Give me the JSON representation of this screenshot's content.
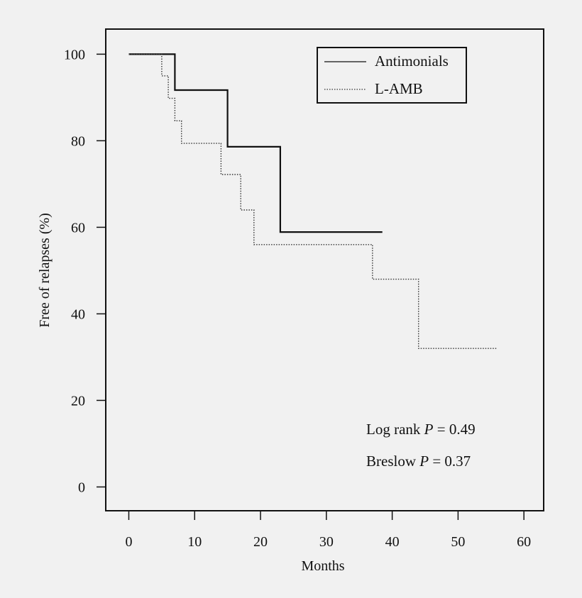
{
  "chart_data": {
    "type": "line",
    "subtype": "kaplan-meier-step",
    "title": "",
    "xlabel": "Months",
    "ylabel": "Free of relapses (%)",
    "xlim": [
      -3.5,
      63
    ],
    "ylim": [
      -5.5,
      105.8
    ],
    "xticks": [
      0,
      10,
      20,
      30,
      40,
      50,
      60
    ],
    "yticks": [
      0,
      20,
      40,
      60,
      80,
      100
    ],
    "legend_position": "top-right",
    "series": [
      {
        "name": "Antimonials",
        "style": "solid",
        "color": "#111111",
        "points": [
          [
            0,
            100
          ],
          [
            7,
            100
          ],
          [
            7,
            91.7
          ],
          [
            15,
            91.7
          ],
          [
            15,
            78.6
          ],
          [
            23,
            78.6
          ],
          [
            23,
            58.9
          ],
          [
            38.5,
            58.9
          ]
        ]
      },
      {
        "name": "L-AMB",
        "style": "dotted",
        "color": "#333333",
        "points": [
          [
            0,
            100
          ],
          [
            5,
            100
          ],
          [
            5,
            95
          ],
          [
            6,
            95
          ],
          [
            6,
            89.8
          ],
          [
            7,
            89.8
          ],
          [
            7,
            84.6
          ],
          [
            8,
            84.6
          ],
          [
            8,
            79.4
          ],
          [
            14,
            79.4
          ],
          [
            14,
            72.2
          ],
          [
            17,
            72.2
          ],
          [
            17,
            64
          ],
          [
            19,
            64
          ],
          [
            19,
            56
          ],
          [
            37,
            56
          ],
          [
            37,
            48
          ],
          [
            44,
            48
          ],
          [
            44,
            32
          ],
          [
            56,
            32
          ]
        ]
      }
    ],
    "annotations": {
      "log_rank_prefix": "Log rank ",
      "log_rank_p": "P",
      "log_rank_value": " = 0.49",
      "breslow_prefix": "Breslow ",
      "breslow_p": "P",
      "breslow_value": " = 0.37"
    }
  }
}
